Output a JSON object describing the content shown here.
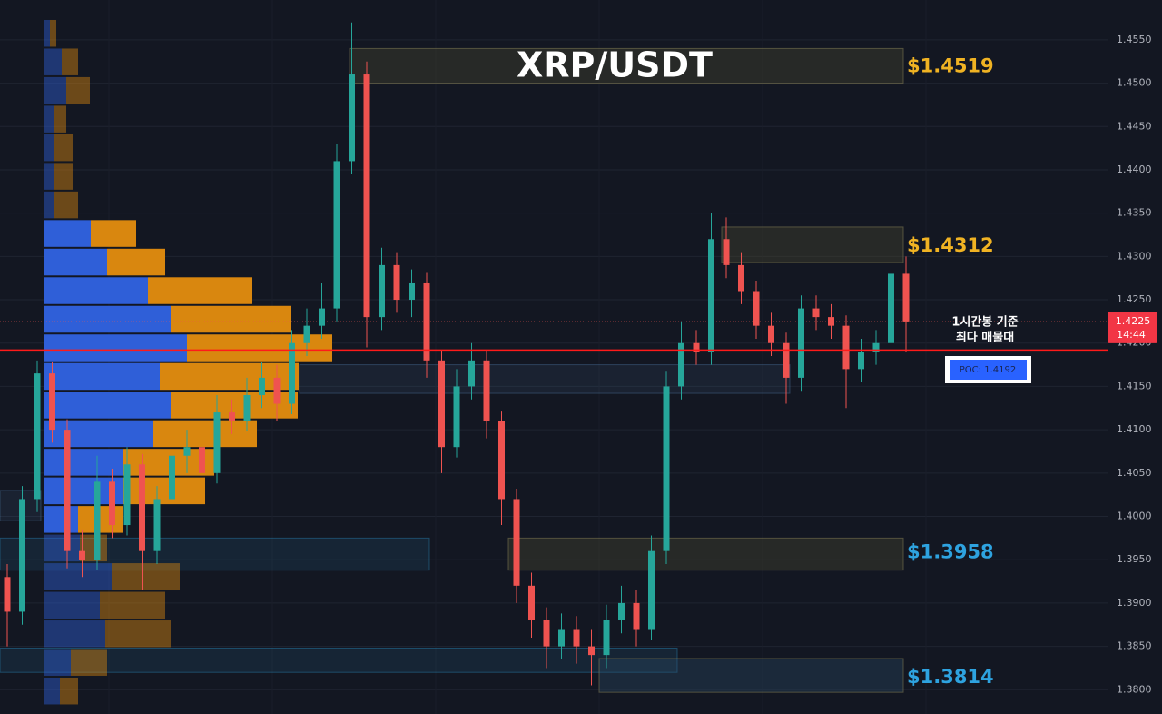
{
  "chart_data": {
    "type": "candlestick",
    "title": "XRP/USDT",
    "up_color": "#26a69a",
    "down_color": "#ef5350",
    "ylim": [
      1.3772,
      1.4596
    ],
    "yticks": [
      {
        "value": 1.38,
        "label": "1.3800"
      },
      {
        "value": 1.385,
        "label": "1.3850"
      },
      {
        "value": 1.39,
        "label": "1.3900"
      },
      {
        "value": 1.395,
        "label": "1.3950"
      },
      {
        "value": 1.4,
        "label": "1.4000"
      },
      {
        "value": 1.405,
        "label": "1.4050"
      },
      {
        "value": 1.41,
        "label": "1.4100"
      },
      {
        "value": 1.415,
        "label": "1.4150"
      },
      {
        "value": 1.42,
        "label": "1.4200"
      },
      {
        "value": 1.425,
        "label": "1.4250"
      },
      {
        "value": 1.43,
        "label": "1.4300"
      },
      {
        "value": 1.435,
        "label": "1.4350"
      },
      {
        "value": 1.44,
        "label": "1.4400"
      },
      {
        "value": 1.445,
        "label": "1.4450"
      },
      {
        "value": 1.45,
        "label": "1.4500"
      },
      {
        "value": 1.455,
        "label": "1.4550"
      }
    ],
    "grid": true,
    "open": [
      1.393,
      1.389,
      1.402,
      1.4165,
      1.41,
      1.396,
      1.395,
      1.404,
      1.399,
      1.406,
      1.396,
      1.402,
      1.407,
      1.408,
      1.405,
      1.412,
      1.411,
      1.414,
      1.416,
      1.413,
      1.42,
      1.422,
      1.424,
      1.441,
      1.451,
      1.423,
      1.429,
      1.425,
      1.427,
      1.418,
      1.408,
      1.415,
      1.418,
      1.411,
      1.402,
      1.392,
      1.388,
      1.385,
      1.387,
      1.385,
      1.384,
      1.388,
      1.39,
      1.387,
      1.396,
      1.415,
      1.42,
      1.419,
      1.432,
      1.429,
      1.426,
      1.422,
      1.42,
      1.416,
      1.424,
      1.423,
      1.422,
      1.417,
      1.419,
      1.42,
      1.428
    ],
    "high": [
      1.3945,
      1.4035,
      1.418,
      1.4178,
      1.4112,
      1.3985,
      1.407,
      1.4055,
      1.408,
      1.4072,
      1.4035,
      1.4085,
      1.41,
      1.4095,
      1.414,
      1.4135,
      1.416,
      1.4178,
      1.4175,
      1.4215,
      1.424,
      1.427,
      1.443,
      1.457,
      1.4525,
      1.431,
      1.4305,
      1.4285,
      1.4282,
      1.4192,
      1.417,
      1.42,
      1.4192,
      1.4122,
      1.4032,
      1.3935,
      1.3895,
      1.3888,
      1.3885,
      1.387,
      1.3898,
      1.392,
      1.3915,
      1.3978,
      1.4168,
      1.4225,
      1.4215,
      1.435,
      1.4345,
      1.4305,
      1.4272,
      1.4235,
      1.4212,
      1.4255,
      1.4255,
      1.4245,
      1.4232,
      1.4205,
      1.4215,
      1.43,
      1.43
    ],
    "low": [
      1.385,
      1.3875,
      1.4005,
      1.4085,
      1.394,
      1.393,
      1.3938,
      1.3975,
      1.3978,
      1.3915,
      1.3945,
      1.4005,
      1.405,
      1.4035,
      1.4038,
      1.4095,
      1.4098,
      1.4125,
      1.411,
      1.4118,
      1.4185,
      1.4205,
      1.4225,
      1.4395,
      1.4195,
      1.4215,
      1.4235,
      1.423,
      1.416,
      1.405,
      1.4068,
      1.4135,
      1.409,
      1.399,
      1.39,
      1.386,
      1.3825,
      1.3835,
      1.383,
      1.3805,
      1.3825,
      1.3865,
      1.385,
      1.3858,
      1.3945,
      1.4135,
      1.4175,
      1.4175,
      1.4275,
      1.4245,
      1.4205,
      1.4185,
      1.413,
      1.4145,
      1.4215,
      1.4205,
      1.4125,
      1.4155,
      1.4175,
      1.4188,
      1.419
    ],
    "close": [
      1.389,
      1.402,
      1.4165,
      1.41,
      1.396,
      1.395,
      1.404,
      1.399,
      1.406,
      1.396,
      1.402,
      1.407,
      1.408,
      1.405,
      1.412,
      1.411,
      1.414,
      1.416,
      1.413,
      1.42,
      1.422,
      1.424,
      1.441,
      1.451,
      1.423,
      1.429,
      1.425,
      1.427,
      1.418,
      1.408,
      1.415,
      1.418,
      1.411,
      1.402,
      1.392,
      1.388,
      1.385,
      1.387,
      1.385,
      1.384,
      1.388,
      1.39,
      1.387,
      1.396,
      1.415,
      1.42,
      1.419,
      1.432,
      1.429,
      1.426,
      1.422,
      1.42,
      1.416,
      1.424,
      1.423,
      1.422,
      1.417,
      1.419,
      1.42,
      1.428,
      1.4225
    ],
    "volume_profile": {
      "bins": [
        1.3782,
        1.3815,
        1.3848,
        1.3881,
        1.3914,
        1.3947,
        1.398,
        1.4013,
        1.4046,
        1.4079,
        1.4112,
        1.4145,
        1.4178,
        1.4211,
        1.4244,
        1.4277,
        1.431,
        1.4343,
        1.4376,
        1.4409,
        1.4442,
        1.4475,
        1.4508,
        1.4541,
        1.4574
      ],
      "buy": [
        18,
        30,
        68,
        62,
        75,
        40,
        38,
        88,
        88,
        120,
        140,
        128,
        158,
        140,
        115,
        70,
        52,
        12,
        12,
        12,
        12,
        25,
        20,
        7
      ],
      "sell": [
        20,
        40,
        72,
        72,
        75,
        30,
        50,
        90,
        100,
        115,
        140,
        153,
        160,
        133,
        115,
        64,
        50,
        26,
        20,
        20,
        13,
        26,
        18,
        7
      ],
      "buy_color": "#2f5fd8",
      "sell_color": "#d9870f",
      "value_area": [
        1.398,
        1.4343
      ]
    },
    "zones": [
      {
        "label": "$1.4519",
        "value": 1.4519,
        "range": [
          1.45,
          1.454
        ],
        "color": "#f0b323"
      },
      {
        "label": "$1.4312",
        "value": 1.4312,
        "range": [
          1.4293,
          1.4334
        ],
        "color": "#f0b323"
      },
      {
        "label": "$1.3958",
        "value": 1.3958,
        "range": [
          1.3938,
          1.3975
        ],
        "color": "#2ea3e0"
      },
      {
        "label": "$1.3814",
        "value": 1.3814,
        "range": [
          1.3797,
          1.3836
        ],
        "color": "#2ea3e0"
      }
    ],
    "poc": {
      "value": 1.4192,
      "label": "POC: 1.4192"
    },
    "last_price": {
      "value": 1.4225,
      "label": "1.4225",
      "countdown": "14:44"
    },
    "annotation": [
      "1시간봉 기준",
      "최다 매물대"
    ]
  }
}
